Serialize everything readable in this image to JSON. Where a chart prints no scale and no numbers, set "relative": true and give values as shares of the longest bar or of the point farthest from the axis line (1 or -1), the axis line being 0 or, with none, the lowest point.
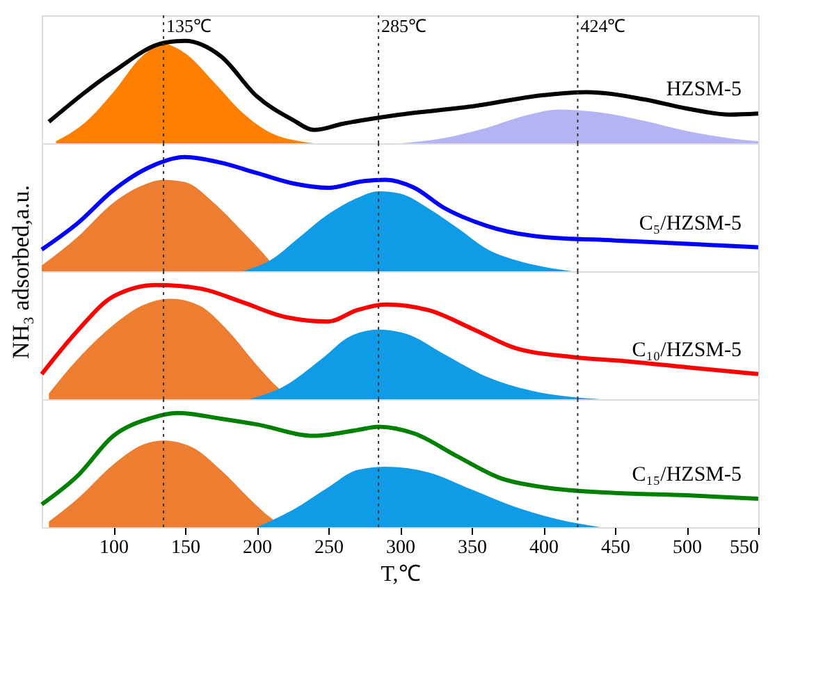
{
  "chart_data": [
    {
      "type": "line",
      "relative": true,
      "xlim": [
        50,
        550
      ],
      "tick_labels": false,
      "legend": false,
      "grid": false,
      "marker": "none",
      "line_style": "solid",
      "ref_lines": [
        {
          "axis": "x",
          "value": 135,
          "label": "135℃",
          "line_style": "dotted"
        },
        {
          "axis": "x",
          "value": 285,
          "label": "285℃",
          "line_style": "dotted"
        },
        {
          "axis": "x",
          "value": 424,
          "label": "424℃",
          "line_style": "dotted"
        }
      ],
      "series": [
        {
          "type": "area",
          "color": "#ff7f00",
          "x": [
            60,
            80,
            100,
            120,
            135,
            150,
            170,
            190,
            210,
            230,
            240
          ],
          "values": [
            0.02,
            0.2,
            0.5,
            0.85,
            0.97,
            0.88,
            0.6,
            0.3,
            0.1,
            0.02,
            0
          ]
        },
        {
          "type": "area",
          "color": "#b4b4f5",
          "x": [
            300,
            330,
            360,
            390,
            410,
            440,
            470,
            500,
            530,
            550
          ],
          "values": [
            0,
            0.05,
            0.15,
            0.28,
            0.33,
            0.3,
            0.22,
            0.12,
            0.05,
            0.02
          ]
        },
        {
          "type": "line",
          "name": "HZSM-5",
          "color": "#000000",
          "x": [
            55,
            100,
            135,
            150,
            175,
            200,
            225,
            240,
            260,
            300,
            350,
            400,
            430,
            470,
            500,
            530,
            550
          ],
          "values": [
            0.21,
            0.7,
            0.98,
            1,
            0.85,
            0.46,
            0.23,
            0.13,
            0.19,
            0.28,
            0.36,
            0.47,
            0.5,
            0.43,
            0.34,
            0.28,
            0.29
          ]
        }
      ]
    },
    {
      "type": "line",
      "relative": true,
      "xlim": [
        50,
        550
      ],
      "tick_labels": false,
      "legend": false,
      "grid": false,
      "marker": "none",
      "line_style": "solid",
      "ylabel": "NH₃ adsorbed,a.u.",
      "ref_lines": [
        {
          "axis": "x",
          "value": 135,
          "label": null,
          "line_style": "dotted"
        },
        {
          "axis": "x",
          "value": 285,
          "label": null,
          "line_style": "dotted"
        },
        {
          "axis": "x",
          "value": 424,
          "label": null,
          "line_style": "dotted"
        }
      ],
      "series": [
        {
          "type": "area",
          "color": "#ed7d31",
          "x": [
            50,
            75,
            100,
            120,
            135,
            150,
            170,
            190,
            205,
            215
          ],
          "values": [
            0.05,
            0.3,
            0.6,
            0.75,
            0.8,
            0.78,
            0.6,
            0.35,
            0.15,
            0
          ]
        },
        {
          "type": "area",
          "color": "#0f9be6",
          "x": [
            190,
            210,
            230,
            250,
            270,
            285,
            300,
            320,
            340,
            360,
            380,
            400,
            420
          ],
          "values": [
            0,
            0.1,
            0.3,
            0.5,
            0.64,
            0.7,
            0.68,
            0.55,
            0.38,
            0.2,
            0.1,
            0.04,
            0
          ]
        },
        {
          "type": "line",
          "name": "C₅/HZSM-5",
          "color": "#0000ff",
          "x": [
            50,
            75,
            100,
            125,
            150,
            175,
            200,
            225,
            250,
            275,
            290,
            310,
            330,
            360,
            400,
            450,
            500,
            550
          ],
          "values": [
            0.19,
            0.42,
            0.71,
            0.91,
            1,
            0.95,
            0.86,
            0.77,
            0.73,
            0.79,
            0.8,
            0.73,
            0.56,
            0.4,
            0.3,
            0.27,
            0.24,
            0.21
          ]
        }
      ]
    },
    {
      "type": "line",
      "relative": true,
      "xlim": [
        50,
        550
      ],
      "tick_labels": false,
      "legend": false,
      "grid": false,
      "marker": "none",
      "line_style": "solid",
      "ref_lines": [
        {
          "axis": "x",
          "value": 135,
          "label": null,
          "line_style": "dotted"
        },
        {
          "axis": "x",
          "value": 285,
          "label": null,
          "line_style": "dotted"
        },
        {
          "axis": "x",
          "value": 424,
          "label": null,
          "line_style": "dotted"
        }
      ],
      "series": [
        {
          "type": "area",
          "color": "#ed7d31",
          "x": [
            55,
            75,
            100,
            120,
            140,
            160,
            180,
            200,
            215,
            225
          ],
          "values": [
            0.05,
            0.35,
            0.65,
            0.82,
            0.88,
            0.82,
            0.6,
            0.3,
            0.1,
            0
          ]
        },
        {
          "type": "area",
          "color": "#0f9be6",
          "x": [
            195,
            220,
            245,
            265,
            285,
            305,
            330,
            360,
            390,
            420,
            440
          ],
          "values": [
            0,
            0.12,
            0.35,
            0.55,
            0.61,
            0.57,
            0.4,
            0.2,
            0.08,
            0.02,
            0
          ]
        },
        {
          "type": "line",
          "name": "C₁₀/HZSM-5",
          "color": "#ff0000",
          "x": [
            50,
            75,
            100,
            130,
            160,
            190,
            220,
            250,
            270,
            290,
            320,
            350,
            380,
            420,
            460,
            500,
            550
          ],
          "values": [
            0.22,
            0.6,
            0.9,
            1,
            0.97,
            0.85,
            0.72,
            0.68,
            0.78,
            0.83,
            0.78,
            0.62,
            0.45,
            0.37,
            0.33,
            0.28,
            0.22
          ]
        }
      ]
    },
    {
      "type": "line",
      "relative": true,
      "xlim": [
        50,
        550
      ],
      "xticks": [
        100,
        150,
        200,
        250,
        300,
        350,
        400,
        450,
        500,
        550
      ],
      "xlabel": "T,℃",
      "tick_labels": "x",
      "legend": false,
      "grid": false,
      "marker": "none",
      "line_style": "solid",
      "ref_lines": [
        {
          "axis": "x",
          "value": 135,
          "label": null,
          "line_style": "dotted"
        },
        {
          "axis": "x",
          "value": 285,
          "label": null,
          "line_style": "dotted"
        },
        {
          "axis": "x",
          "value": 424,
          "label": null,
          "line_style": "dotted"
        }
      ],
      "series": [
        {
          "type": "area",
          "color": "#ed7d31",
          "x": [
            55,
            75,
            100,
            120,
            135,
            155,
            175,
            195,
            210,
            220
          ],
          "values": [
            0.05,
            0.25,
            0.55,
            0.72,
            0.76,
            0.7,
            0.5,
            0.25,
            0.08,
            0
          ]
        },
        {
          "type": "area",
          "color": "#0f9be6",
          "x": [
            200,
            225,
            250,
            270,
            290,
            320,
            350,
            380,
            410,
            440
          ],
          "values": [
            0,
            0.15,
            0.35,
            0.5,
            0.53,
            0.48,
            0.33,
            0.18,
            0.07,
            0
          ]
        },
        {
          "type": "line",
          "name": "C₁₅/HZSM-5",
          "color": "#008000",
          "x": [
            50,
            75,
            100,
            125,
            145,
            175,
            200,
            240,
            270,
            285,
            310,
            340,
            370,
            400,
            450,
            500,
            550
          ],
          "values": [
            0.2,
            0.45,
            0.8,
            0.95,
            1,
            0.95,
            0.9,
            0.8,
            0.85,
            0.88,
            0.82,
            0.62,
            0.43,
            0.35,
            0.3,
            0.28,
            0.25
          ]
        }
      ]
    }
  ]
}
